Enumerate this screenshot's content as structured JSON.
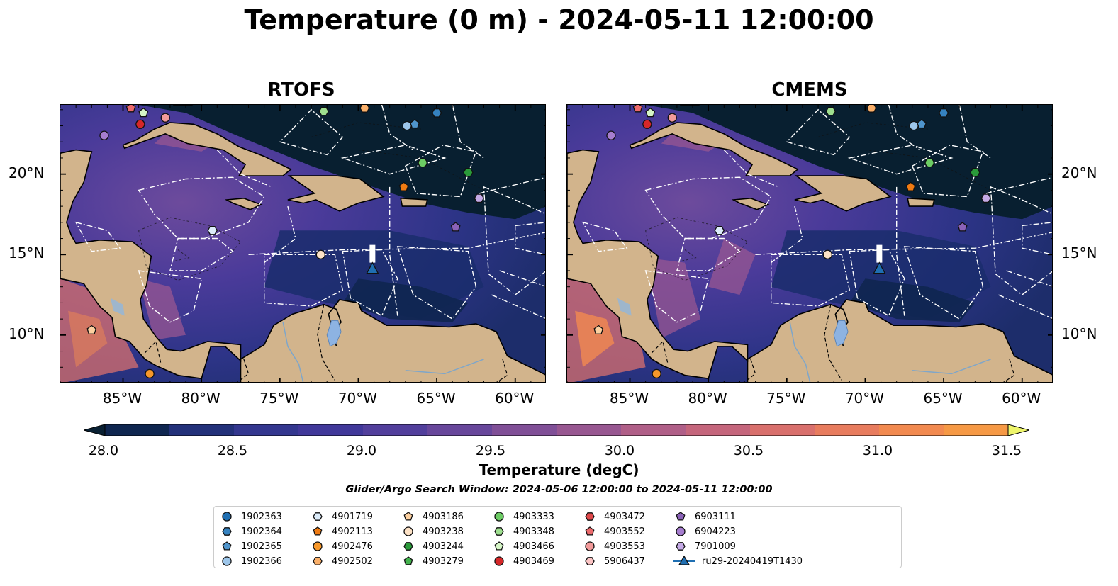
{
  "title": "Temperature (0 m) - 2024-05-11 12:00:00",
  "panels": [
    {
      "name": "RTOFS"
    },
    {
      "name": "CMEMS"
    }
  ],
  "map_extent": {
    "lon": [
      -89,
      -58
    ],
    "lat": [
      7,
      24.3
    ]
  },
  "lon_ticks": [
    {
      "value": -85,
      "label": "85°W"
    },
    {
      "value": -80,
      "label": "80°W"
    },
    {
      "value": -75,
      "label": "75°W"
    },
    {
      "value": -70,
      "label": "70°W"
    },
    {
      "value": -65,
      "label": "65°W"
    },
    {
      "value": -60,
      "label": "60°W"
    }
  ],
  "lat_ticks": [
    {
      "value": 20,
      "label": "20°N"
    },
    {
      "value": 15,
      "label": "15°N"
    },
    {
      "value": 10,
      "label": "10°N"
    }
  ],
  "colorbar": {
    "label": "Temperature (degC)",
    "min": 28.0,
    "max": 31.5,
    "step": 0.25,
    "ticks": [
      "28.0",
      "28.5",
      "29.0",
      "29.5",
      "30.0",
      "30.5",
      "31.0",
      "31.5"
    ],
    "colors": [
      "#0f2650",
      "#23317a",
      "#33378f",
      "#41389a",
      "#523f9c",
      "#68479b",
      "#804f97",
      "#985791",
      "#b05f88",
      "#c5667c",
      "#d9706d",
      "#e87c5e",
      "#f28a50",
      "#f69945",
      "#f7ad46",
      "#f4c54b",
      "#f2dd55",
      "#eef56a"
    ],
    "under_color": "#092033",
    "over_color": "#eef56a"
  },
  "search_window": "Glider/Argo Search Window: 2024-05-06 12:00:00 to 2024-05-11 12:00:00",
  "legend": [
    {
      "label": "1902363",
      "marker": "circle",
      "color": "#1f6fb2"
    },
    {
      "label": "1902364",
      "marker": "hexagon",
      "color": "#3582c0"
    },
    {
      "label": "1902365",
      "marker": "pentagon",
      "color": "#4f95cc"
    },
    {
      "label": "1902366",
      "marker": "circle",
      "color": "#9dc6ea"
    },
    {
      "label": "4901719",
      "marker": "hexagon",
      "color": "#dcecfa"
    },
    {
      "label": "4902113",
      "marker": "pentagon",
      "color": "#f07b12"
    },
    {
      "label": "4902476",
      "marker": "circle",
      "color": "#f8982a"
    },
    {
      "label": "4902502",
      "marker": "hexagon",
      "color": "#fbb06a"
    },
    {
      "label": "4903186",
      "marker": "pentagon",
      "color": "#fcd0a0"
    },
    {
      "label": "4903238",
      "marker": "circle",
      "color": "#fde2c6"
    },
    {
      "label": "4903244",
      "marker": "hexagon",
      "color": "#2a9a3a"
    },
    {
      "label": "4903279",
      "marker": "pentagon",
      "color": "#44b34e"
    },
    {
      "label": "4903333",
      "marker": "circle",
      "color": "#6ccc64"
    },
    {
      "label": "4903348",
      "marker": "hexagon",
      "color": "#9edf8f"
    },
    {
      "label": "4903466",
      "marker": "pentagon",
      "color": "#d5f5c6"
    },
    {
      "label": "4903469",
      "marker": "circle",
      "color": "#d62728"
    },
    {
      "label": "4903472",
      "marker": "hexagon",
      "color": "#e0484a"
    },
    {
      "label": "4903552",
      "marker": "pentagon",
      "color": "#ec6a6c"
    },
    {
      "label": "4903553",
      "marker": "circle",
      "color": "#f29a9a"
    },
    {
      "label": "5906437",
      "marker": "hexagon",
      "color": "#fbc4c4"
    },
    {
      "label": "6903111",
      "marker": "pentagon",
      "color": "#8b62b8"
    },
    {
      "label": "6904223",
      "marker": "circle",
      "color": "#a67dcf"
    },
    {
      "label": "7901009",
      "marker": "hexagon",
      "color": "#c5aae6"
    },
    {
      "label": "ru29-20240419T1430",
      "marker": "triangle",
      "color": "#1f6fb2",
      "line": true
    }
  ],
  "floats": [
    {
      "id": "4903552",
      "lon": -84.5,
      "lat": 24.1
    },
    {
      "id": "4903466",
      "lon": -83.7,
      "lat": 23.8
    },
    {
      "id": "4903469",
      "lon": -83.9,
      "lat": 23.1
    },
    {
      "id": "4903553",
      "lon": -82.3,
      "lat": 23.5
    },
    {
      "id": "6904223",
      "lon": -86.2,
      "lat": 22.4
    },
    {
      "id": "4903348",
      "lon": -72.2,
      "lat": 23.9
    },
    {
      "id": "4902502",
      "lon": -69.6,
      "lat": 24.1
    },
    {
      "id": "1902366",
      "lon": -66.9,
      "lat": 23.0
    },
    {
      "id": "1902365",
      "lon": -66.4,
      "lat": 23.1
    },
    {
      "id": "1902364",
      "lon": -65.0,
      "lat": 23.8
    },
    {
      "id": "4903333",
      "lon": -65.9,
      "lat": 20.7
    },
    {
      "id": "4903244",
      "lon": -63.0,
      "lat": 20.1
    },
    {
      "id": "4902113",
      "lon": -67.1,
      "lat": 19.2
    },
    {
      "id": "7901009",
      "lon": -62.3,
      "lat": 18.5
    },
    {
      "id": "6903111",
      "lon": -63.8,
      "lat": 16.7
    },
    {
      "id": "4901719",
      "lon": -79.3,
      "lat": 16.5
    },
    {
      "id": "4903238",
      "lon": -72.4,
      "lat": 15.0
    },
    {
      "id": "4903186",
      "lon": -87.0,
      "lat": 10.3
    },
    {
      "id": "4902476",
      "lon": -83.3,
      "lat": 7.6
    }
  ],
  "glider": {
    "id": "ru29-20240419T1430",
    "lon": -69.1,
    "lat": 14.1,
    "track": [
      [
        -69.1,
        15.6
      ],
      [
        -69.1,
        14.5
      ]
    ]
  },
  "land_color": "#d2b48c",
  "boundary_color": "#ffffff"
}
